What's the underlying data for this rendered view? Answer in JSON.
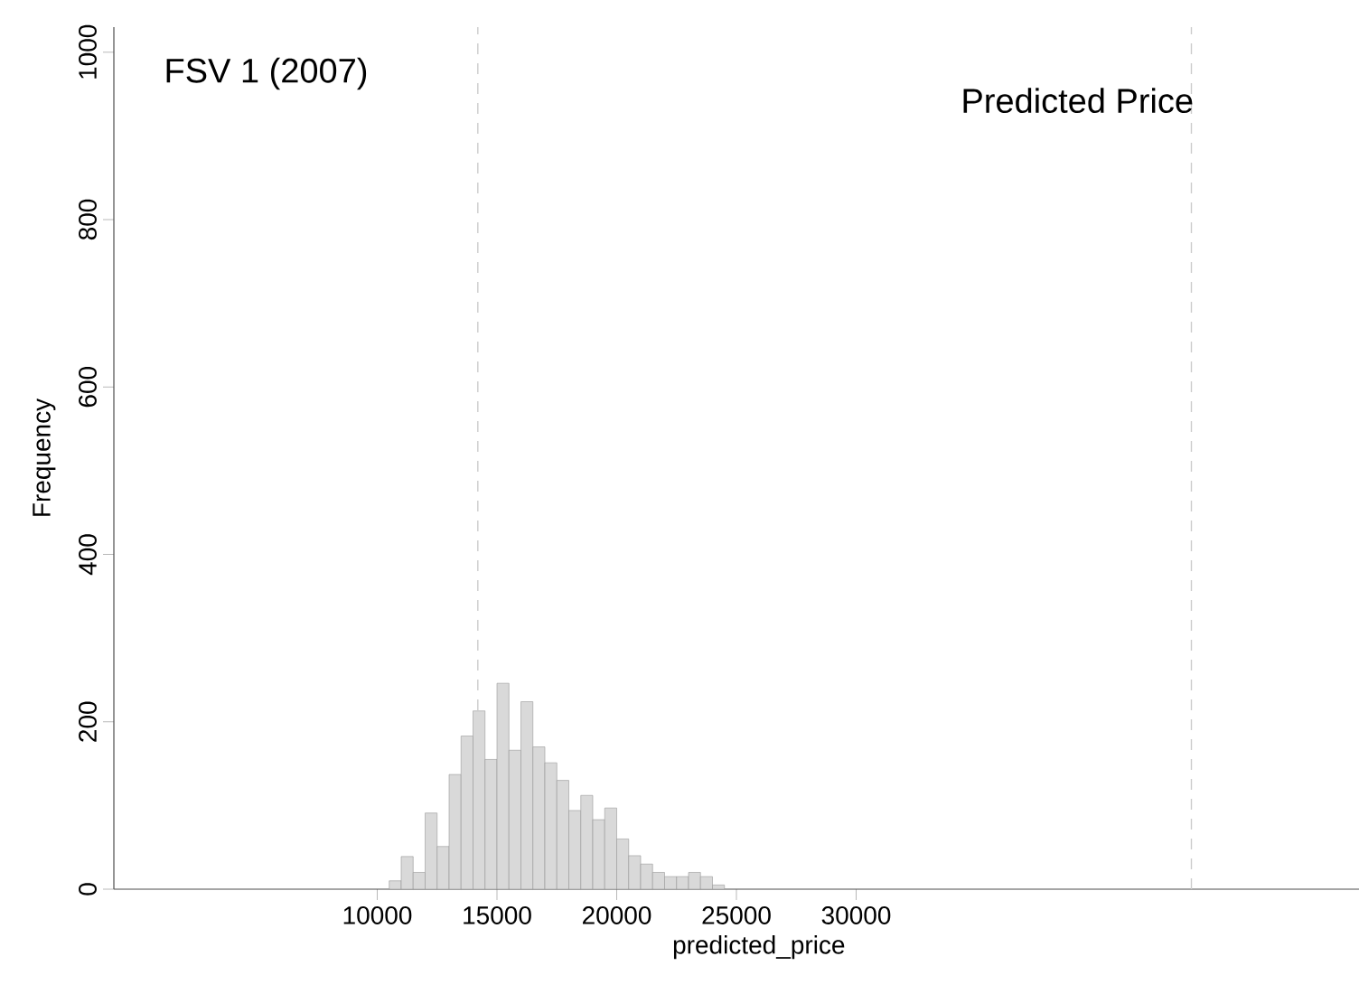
{
  "chart_data": {
    "type": "histogram",
    "annotations": [
      "FSV 1 (2007)",
      "Predicted Price"
    ],
    "xlabel": "predicted_price",
    "ylabel": "Frequency",
    "bins": [
      10500,
      11000,
      11500,
      12000,
      12500,
      13000,
      13500,
      14000,
      14500,
      15000,
      15500,
      16000,
      16500,
      17000,
      17500,
      18000,
      18500,
      19000,
      19500,
      20000,
      20500,
      21000,
      21500,
      22000,
      22500,
      23000,
      23500,
      24000,
      24500
    ],
    "values": [
      10,
      39,
      20,
      91,
      51,
      137,
      183,
      213,
      155,
      246,
      166,
      224,
      170,
      151,
      130,
      94,
      112,
      83,
      97,
      60,
      40,
      30,
      20,
      15,
      15,
      20,
      15,
      5
    ],
    "color": "#d9d9d9",
    "xlim": [
      -1000,
      51000
    ],
    "ylim": [
      0,
      1030
    ],
    "xticks": [
      10000,
      15000,
      20000,
      25000,
      30000
    ],
    "yticks": [
      0,
      200,
      400,
      600,
      800,
      1000
    ],
    "ref_lines": [
      {
        "axis": "x",
        "value": 14200,
        "color": "#cccccc",
        "line_style": "dashed"
      },
      {
        "axis": "x",
        "value": 44000,
        "color": "#cccccc",
        "line_style": "dashed"
      }
    ],
    "grid": false
  }
}
